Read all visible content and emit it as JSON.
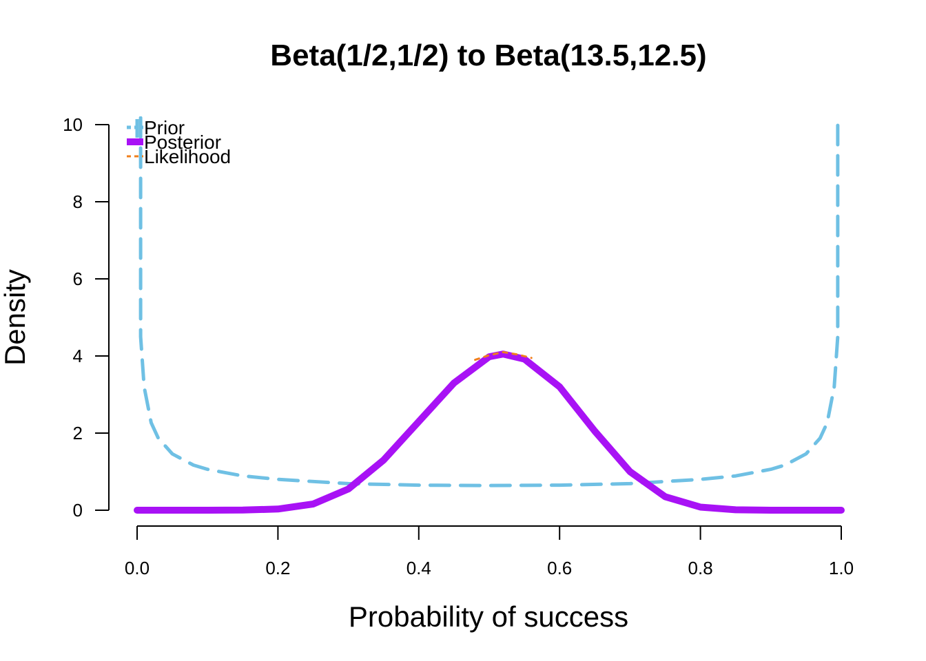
{
  "chart_data": {
    "type": "line",
    "title": "Beta(1/2,1/2) to Beta(13.5,12.5)",
    "xlabel": "Probability of success",
    "ylabel": "Density",
    "xlim": [
      0,
      1
    ],
    "ylim": [
      0,
      10
    ],
    "x_ticks": [
      "0.0",
      "0.2",
      "0.4",
      "0.6",
      "0.8",
      "1.0"
    ],
    "y_ticks": [
      "0",
      "2",
      "4",
      "6",
      "8",
      "10"
    ],
    "grid": false,
    "legend_position": "top-left",
    "series": [
      {
        "name": "Prior",
        "style": "dashed",
        "color": "#6fc0e4",
        "x": [
          0.005,
          0.01,
          0.02,
          0.03,
          0.05,
          0.08,
          0.1,
          0.15,
          0.2,
          0.3,
          0.4,
          0.5,
          0.6,
          0.7,
          0.8,
          0.85,
          0.9,
          0.92,
          0.95,
          0.97,
          0.98,
          0.99,
          0.995
        ],
        "y": [
          4.5,
          3.2,
          2.27,
          1.87,
          1.46,
          1.17,
          1.06,
          0.89,
          0.8,
          0.69,
          0.65,
          0.64,
          0.65,
          0.69,
          0.8,
          0.89,
          1.06,
          1.17,
          1.46,
          1.87,
          2.27,
          3.2,
          4.5
        ]
      },
      {
        "name": "Posterior",
        "style": "solid",
        "color": "#a812f5",
        "x": [
          0.0,
          0.1,
          0.15,
          0.2,
          0.25,
          0.3,
          0.35,
          0.4,
          0.45,
          0.5,
          0.52,
          0.55,
          0.6,
          0.65,
          0.7,
          0.75,
          0.8,
          0.85,
          0.9,
          1.0
        ],
        "y": [
          0.0,
          0.0,
          0.003,
          0.03,
          0.16,
          0.55,
          1.3,
          2.3,
          3.3,
          3.98,
          4.05,
          3.92,
          3.2,
          2.05,
          1.0,
          0.35,
          0.08,
          0.01,
          0.0,
          0.0
        ]
      },
      {
        "name": "Likelihood",
        "style": "dashed",
        "color": "#f07f1b",
        "x": [
          0.48,
          0.5,
          0.52,
          0.54,
          0.56
        ],
        "y": [
          3.9,
          4.02,
          4.1,
          4.04,
          3.95
        ]
      }
    ]
  }
}
